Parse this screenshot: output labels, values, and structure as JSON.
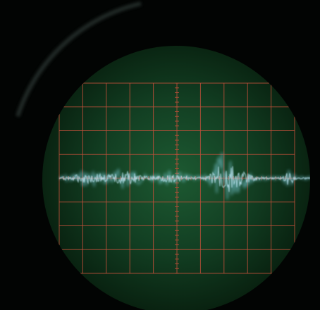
{
  "scope": {
    "screen": {
      "glow_center": "#1d5a32",
      "glow_mid": "#123e22",
      "glow_edge": "#08200f",
      "bezel_highlight": "#2e3a38"
    },
    "graticule": {
      "color": "#c0503a",
      "major_divisions_x": 10,
      "major_divisions_y": 8,
      "minor_ticks_per_division": 5
    },
    "trace": {
      "color": "#7fd0e0",
      "core_color": "#c8f0ff",
      "description_kind": "noisy-baseline-with-bursts"
    }
  }
}
